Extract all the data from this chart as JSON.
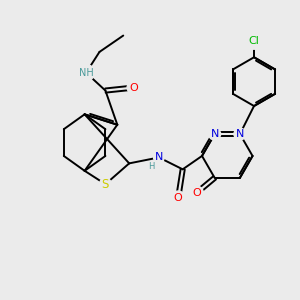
{
  "background_color": "#ebebeb",
  "figsize": [
    3.0,
    3.0
  ],
  "dpi": 100,
  "atom_colors": {
    "C": "#000000",
    "N": "#0000dd",
    "O": "#ff0000",
    "S": "#cccc00",
    "Cl": "#00bb00",
    "H": "#4a9a9a",
    "NH_color": "#4a9a9a"
  },
  "bond_color": "#000000",
  "bond_width": 1.4,
  "font_size": 8.0,
  "font_size_small": 7.0
}
